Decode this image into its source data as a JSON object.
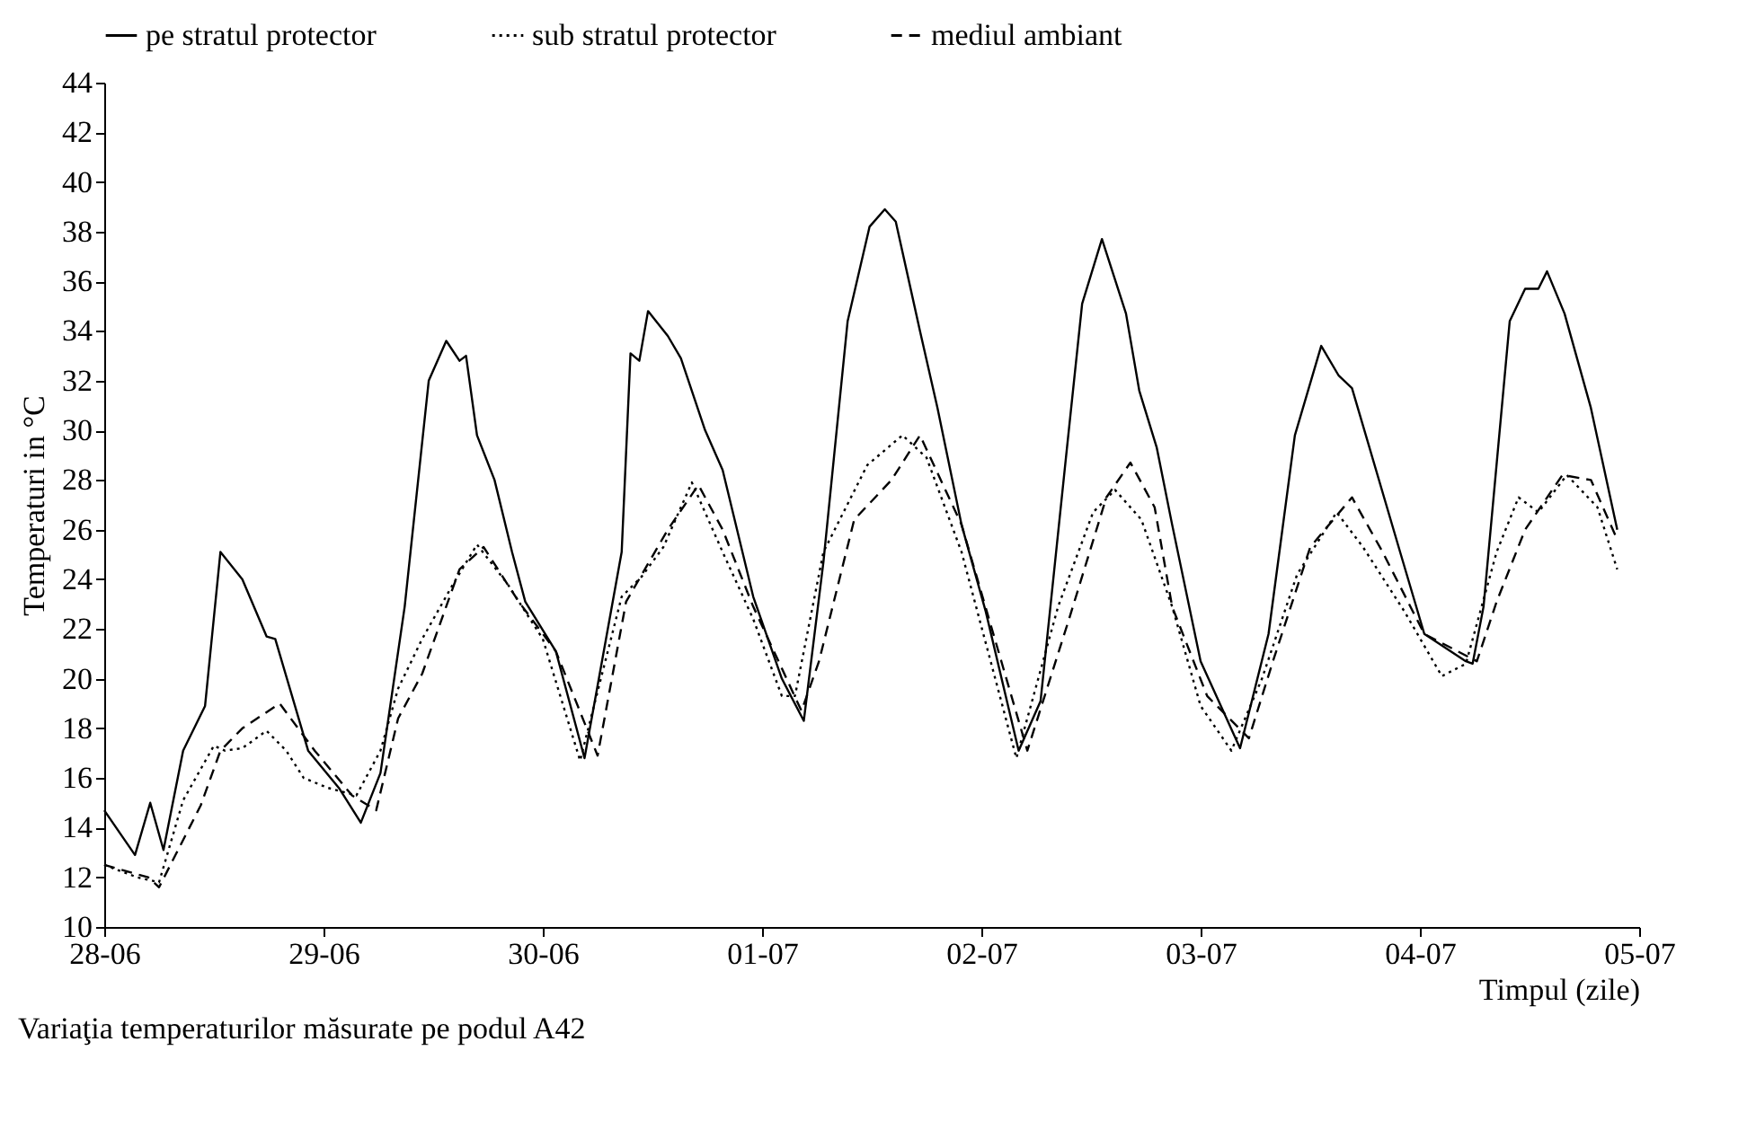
{
  "chart_data": {
    "type": "line",
    "title": "Variaţia temperaturilor măsurate pe podul A42",
    "xlabel": "Timpul (zile)",
    "ylabel": "Temperaturi in °C",
    "xlim": [
      "--06-28",
      "--07-05"
    ],
    "xticks": [
      {
        "value": "--06-28",
        "label": "28-06"
      },
      {
        "value": "--06-29",
        "label": "29-06"
      },
      {
        "value": "--06-30",
        "label": "30-06"
      },
      {
        "value": "--07-01",
        "label": "01-07"
      },
      {
        "value": "--07-02",
        "label": "02-07"
      },
      {
        "value": "--07-03",
        "label": "03-07"
      },
      {
        "value": "--07-04",
        "label": "04-07"
      },
      {
        "value": "--07-05",
        "label": "05-07"
      }
    ],
    "ylim": [
      10,
      44
    ],
    "yticks": [
      10,
      12,
      14,
      16,
      18,
      20,
      22,
      24,
      26,
      28,
      30,
      32,
      34,
      36,
      38,
      40,
      42,
      44
    ],
    "legend": "top",
    "grid": false,
    "series": [
      {
        "name": "pe stratul protector",
        "color": "#000000",
        "line_style": "solid",
        "x": [
          "--06-28T00:00",
          "--06-28T03:22",
          "--06-28T05:02",
          "--06-28T06:29",
          "--06-28T08:38",
          "--06-28T11:02",
          "--06-28T12:43",
          "--06-28T15:07",
          "--06-28T17:46",
          "--06-28T18:43",
          "--06-28T22:19",
          "--06-29T01:41",
          "--06-29T04:05",
          "--06-29T06:14",
          "--06-29T08:53",
          "--06-29T11:31",
          "--06-29T13:26",
          "--06-29T14:53",
          "--06-29T15:36",
          "--06-29T16:48",
          "--06-29T18:43",
          "--06-29T20:38",
          "--06-29T22:05",
          "--06-30T01:26",
          "--06-30T04:34",
          "--06-30T08:38",
          "--06-30T09:36",
          "--06-30T10:34",
          "--06-30T11:31",
          "--06-30T13:41",
          "--06-30T15:07",
          "--06-30T17:46",
          "--06-30T19:41",
          "--06-30T23:02",
          "--07-01T02:10",
          "--07-01T04:34",
          "--07-01T06:43",
          "--07-01T09:22",
          "--07-01T11:46",
          "--07-01T13:26",
          "--07-01T14:38",
          "--07-01T17:17",
          "--07-01T19:12",
          "--07-01T21:50",
          "--07-02T00:29",
          "--07-02T04:05",
          "--07-02T06:29",
          "--07-02T09:07",
          "--07-02T11:02",
          "--07-02T13:12",
          "--07-02T15:50",
          "--07-02T17:17",
          "--07-02T19:12",
          "--07-02T20:53",
          "--07-03T00:00",
          "--07-03T04:19",
          "--07-03T07:26",
          "--07-03T10:19",
          "--07-03T13:12",
          "--07-03T15:07",
          "--07-03T16:34",
          "--07-03T21:50",
          "--07-04T00:29",
          "--07-04T05:02",
          "--07-04T05:46",
          "--07-04T06:58",
          "--07-04T09:50",
          "--07-04T11:31",
          "--07-04T12:58",
          "--07-04T13:55",
          "--07-04T15:50",
          "--07-04T18:43",
          "--07-04T21:36"
        ],
        "values": [
          14.7,
          12.9,
          15,
          13.1,
          17.1,
          18.9,
          25.1,
          24,
          21.7,
          21.6,
          17.1,
          15.6,
          14.2,
          16.2,
          22.9,
          32,
          33.6,
          32.8,
          33,
          29.8,
          28,
          25.1,
          23.1,
          21.1,
          16.8,
          25.1,
          33.1,
          32.8,
          34.8,
          33.8,
          32.9,
          30,
          28.4,
          23.3,
          20,
          18.3,
          24.7,
          34.4,
          38.2,
          38.9,
          38.4,
          34,
          30.9,
          26.2,
          22.7,
          17.1,
          19.1,
          28.4,
          35.1,
          37.7,
          34.7,
          31.6,
          29.3,
          26.2,
          20.7,
          17.2,
          21.8,
          29.8,
          33.4,
          32.2,
          31.7,
          25.1,
          21.8,
          20.7,
          20.6,
          22.9,
          34.4,
          35.7,
          35.7,
          36.4,
          34.7,
          30.9,
          26
        ]
      },
      {
        "name": "sub stratul protector",
        "color": "#000000",
        "line_style": "dotted",
        "x": [
          "--06-28T00:00",
          "--06-28T03:36",
          "--06-28T06:00",
          "--06-28T08:38",
          "--06-28T12:00",
          "--06-28T13:12",
          "--06-28T15:07",
          "--06-28T17:46",
          "--06-28T19:55",
          "--06-28T21:50",
          "--06-29T00:29",
          "--06-29T03:36",
          "--06-29T06:14",
          "--06-29T08:10",
          "--06-29T10:48",
          "--06-29T14:10",
          "--06-29T16:48",
          "--06-29T20:10",
          "--06-30T00:00",
          "--06-30T04:05",
          "--06-30T08:38",
          "--06-30T10:48",
          "--06-30T13:12",
          "--06-30T16:19",
          "--06-30T19:41",
          "--06-30T23:02",
          "--07-01T02:10",
          "--07-01T03:36",
          "--07-01T06:43",
          "--07-01T11:31",
          "--07-01T15:22",
          "--07-01T18:00",
          "--07-01T21:50",
          "--07-02T03:50",
          "--07-02T08:24",
          "--07-02T12:14",
          "--07-02T14:38",
          "--07-02T17:31",
          "--07-02T20:53",
          "--07-03T00:00",
          "--07-03T03:22",
          "--07-03T06:43",
          "--07-03T10:34",
          "--07-03T14:53",
          "--07-03T17:46",
          "--07-03T22:19",
          "--07-04T02:24",
          "--07-04T05:02",
          "--07-04T08:24",
          "--07-04T10:48",
          "--07-04T12:58",
          "--07-04T16:05",
          "--07-04T19:26",
          "--07-04T21:36"
        ],
        "values": [
          12.5,
          12,
          11.8,
          15.1,
          17.3,
          17.1,
          17.2,
          17.9,
          17.1,
          16,
          15.6,
          15.3,
          17.1,
          19.6,
          21.6,
          23.8,
          25.4,
          23.8,
          21.6,
          16.7,
          23.3,
          24.1,
          25.3,
          27.9,
          25.1,
          22.4,
          19.3,
          19.3,
          25.1,
          28.6,
          29.8,
          28.9,
          25.1,
          16.8,
          22.9,
          26.7,
          27.6,
          26.4,
          22.9,
          18.9,
          17.1,
          20,
          24.2,
          26.7,
          25.3,
          22.7,
          20.1,
          20.6,
          25.1,
          27.3,
          26.7,
          28.2,
          26.9,
          24.4
        ]
      },
      {
        "name": "mediul ambiant",
        "color": "#000000",
        "line_style": "dashed",
        "x": [
          "--06-28T00:00",
          "--06-28T04:48",
          "--06-28T06:00",
          "--06-28T10:34",
          "--06-28T12:43",
          "--06-28T15:07",
          "--06-28T19:12",
          "--06-28T23:02",
          "--06-29T03:07",
          "--06-29T05:46",
          "--06-29T08:10",
          "--06-29T10:48",
          "--06-29T14:53",
          "--06-29T17:31",
          "--06-29T21:22",
          "--06-30T01:26",
          "--06-30T06:00",
          "--06-30T09:07",
          "--06-30T13:41",
          "--06-30T17:02",
          "--06-30T19:41",
          "--06-30T23:02",
          "--07-01T04:19",
          "--07-01T06:14",
          "--07-01T10:05",
          "--07-01T14:10",
          "--07-01T17:17",
          "--07-01T21:50",
          "--07-02T05:02",
          "--07-02T09:36",
          "--07-02T13:41",
          "--07-02T16:19",
          "--07-02T18:58",
          "--07-02T20:53",
          "--07-03T00:43",
          "--07-03T05:17",
          "--07-03T07:55",
          "--07-03T12:00",
          "--07-03T16:34",
          "--07-03T19:55",
          "--07-04T00:29",
          "--07-04T06:14",
          "--07-04T08:24",
          "--07-04T11:31",
          "--07-04T15:36",
          "--07-04T18:43",
          "--07-04T21:36"
        ],
        "values": [
          12.5,
          12,
          11.6,
          14.9,
          17.1,
          18,
          19,
          17.1,
          15.3,
          14.7,
          18.4,
          20.2,
          24.4,
          25.3,
          23.1,
          21.1,
          16.9,
          23.1,
          26,
          27.8,
          26,
          22.9,
          18.7,
          20.7,
          26.4,
          28,
          29.8,
          26.2,
          17.1,
          22.4,
          27.3,
          28.7,
          26.9,
          22.9,
          19.3,
          17.6,
          20.7,
          25.3,
          27.3,
          25.1,
          21.8,
          20.7,
          23.1,
          26,
          28.2,
          28,
          25.6
        ]
      }
    ]
  }
}
